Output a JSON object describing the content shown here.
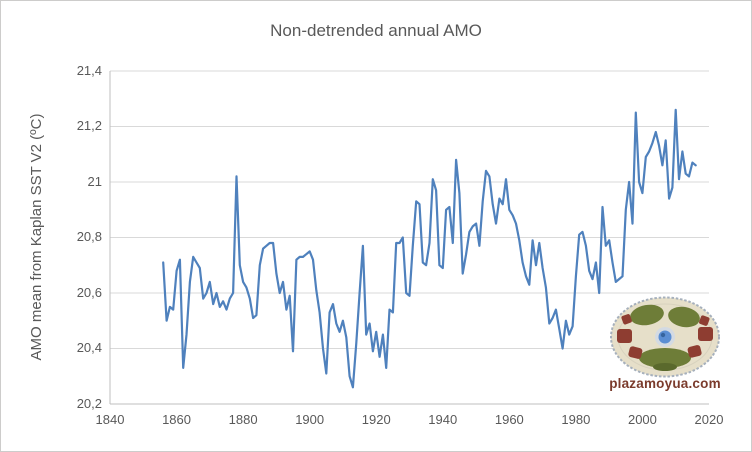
{
  "colors": {
    "grid": "#D9D9D9",
    "axis": "#BFBFBF",
    "text": "#595959",
    "series": "#4F81BD",
    "frame_border": "#CDCCCB",
    "watermark_text": "#7B3B2C"
  },
  "watermark": {
    "text": "plazamoyua.com"
  },
  "chart_data": {
    "type": "line",
    "title": "Non-detrended annual AMO",
    "xlabel": "",
    "ylabel": "AMO mean from Kaplan SST V2 (ºC)",
    "legend": "none",
    "grid": "horizontal",
    "xlim": [
      1840,
      2020
    ],
    "ylim": [
      20.2,
      21.4
    ],
    "yticks": [
      {
        "value": 21.4,
        "label": "21,4"
      },
      {
        "value": 21.2,
        "label": "21,2"
      },
      {
        "value": 21.0,
        "label": "21"
      },
      {
        "value": 20.8,
        "label": "20,8"
      },
      {
        "value": 20.6,
        "label": "20,6"
      },
      {
        "value": 20.4,
        "label": "20,4"
      },
      {
        "value": 20.2,
        "label": "20,2"
      }
    ],
    "xticks": [
      {
        "value": 1840,
        "label": "1840"
      },
      {
        "value": 1860,
        "label": "1860"
      },
      {
        "value": 1880,
        "label": "1880"
      },
      {
        "value": 1900,
        "label": "1900"
      },
      {
        "value": 1920,
        "label": "1920"
      },
      {
        "value": 1940,
        "label": "1940"
      },
      {
        "value": 1960,
        "label": "1960"
      },
      {
        "value": 1980,
        "label": "1980"
      },
      {
        "value": 2000,
        "label": "2000"
      },
      {
        "value": 2020,
        "label": "2020"
      }
    ],
    "series_name": "AMO mean",
    "years": [
      1856,
      1857,
      1858,
      1859,
      1860,
      1861,
      1862,
      1863,
      1864,
      1865,
      1866,
      1867,
      1868,
      1869,
      1870,
      1871,
      1872,
      1873,
      1874,
      1875,
      1876,
      1877,
      1878,
      1879,
      1880,
      1881,
      1882,
      1883,
      1884,
      1885,
      1886,
      1887,
      1888,
      1889,
      1890,
      1891,
      1892,
      1893,
      1894,
      1895,
      1896,
      1897,
      1898,
      1899,
      1900,
      1901,
      1902,
      1903,
      1904,
      1905,
      1906,
      1907,
      1908,
      1909,
      1910,
      1911,
      1912,
      1913,
      1914,
      1915,
      1916,
      1917,
      1918,
      1919,
      1920,
      1921,
      1922,
      1923,
      1924,
      1925,
      1926,
      1927,
      1928,
      1929,
      1930,
      1931,
      1932,
      1933,
      1934,
      1935,
      1936,
      1937,
      1938,
      1939,
      1940,
      1941,
      1942,
      1943,
      1944,
      1945,
      1946,
      1947,
      1948,
      1949,
      1950,
      1951,
      1952,
      1953,
      1954,
      1955,
      1956,
      1957,
      1958,
      1959,
      1960,
      1961,
      1962,
      1963,
      1964,
      1965,
      1966,
      1967,
      1968,
      1969,
      1970,
      1971,
      1972,
      1973,
      1974,
      1975,
      1976,
      1977,
      1978,
      1979,
      1980,
      1981,
      1982,
      1983,
      1984,
      1985,
      1986,
      1987,
      1988,
      1989,
      1990,
      1991,
      1992,
      1993,
      1994,
      1995,
      1996,
      1997,
      1998,
      1999,
      2000,
      2001,
      2002,
      2003,
      2004,
      2005,
      2006,
      2007,
      2008,
      2009,
      2010,
      2011,
      2012,
      2013,
      2014,
      2015,
      2016
    ],
    "values": [
      20.71,
      20.5,
      20.55,
      20.54,
      20.68,
      20.72,
      20.33,
      20.45,
      20.64,
      20.73,
      20.71,
      20.69,
      20.58,
      20.6,
      20.64,
      20.56,
      20.6,
      20.55,
      20.57,
      20.54,
      20.58,
      20.6,
      21.02,
      20.7,
      20.64,
      20.62,
      20.58,
      20.51,
      20.52,
      20.7,
      20.76,
      20.77,
      20.78,
      20.78,
      20.67,
      20.6,
      20.64,
      20.54,
      20.59,
      20.39,
      20.72,
      20.73,
      20.73,
      20.74,
      20.75,
      20.72,
      20.61,
      20.53,
      20.4,
      20.31,
      20.53,
      20.56,
      20.49,
      20.46,
      20.5,
      20.44,
      20.3,
      20.26,
      20.42,
      20.6,
      20.77,
      20.45,
      20.49,
      20.39,
      20.46,
      20.37,
      20.45,
      20.33,
      20.54,
      20.53,
      20.78,
      20.78,
      20.8,
      20.6,
      20.59,
      20.77,
      20.93,
      20.92,
      20.71,
      20.7,
      20.78,
      21.01,
      20.97,
      20.7,
      20.69,
      20.9,
      20.91,
      20.78,
      21.08,
      20.96,
      20.67,
      20.74,
      20.82,
      20.84,
      20.85,
      20.77,
      20.93,
      21.04,
      21.02,
      20.92,
      20.85,
      20.94,
      20.92,
      21.01,
      20.9,
      20.88,
      20.85,
      20.79,
      20.71,
      20.66,
      20.63,
      20.79,
      20.7,
      20.78,
      20.69,
      20.62,
      20.49,
      20.51,
      20.54,
      20.47,
      20.4,
      20.5,
      20.45,
      20.48,
      20.66,
      20.81,
      20.82,
      20.77,
      20.68,
      20.65,
      20.71,
      20.6,
      20.91,
      20.77,
      20.79,
      20.71,
      20.64,
      20.65,
      20.66,
      20.9,
      21.0,
      20.85,
      21.25,
      21.0,
      20.96,
      21.09,
      21.11,
      21.14,
      21.18,
      21.13,
      21.06,
      21.15,
      20.94,
      20.98,
      21.26,
      21.01,
      21.11,
      21.03,
      21.02,
      21.07,
      21.06
    ]
  }
}
